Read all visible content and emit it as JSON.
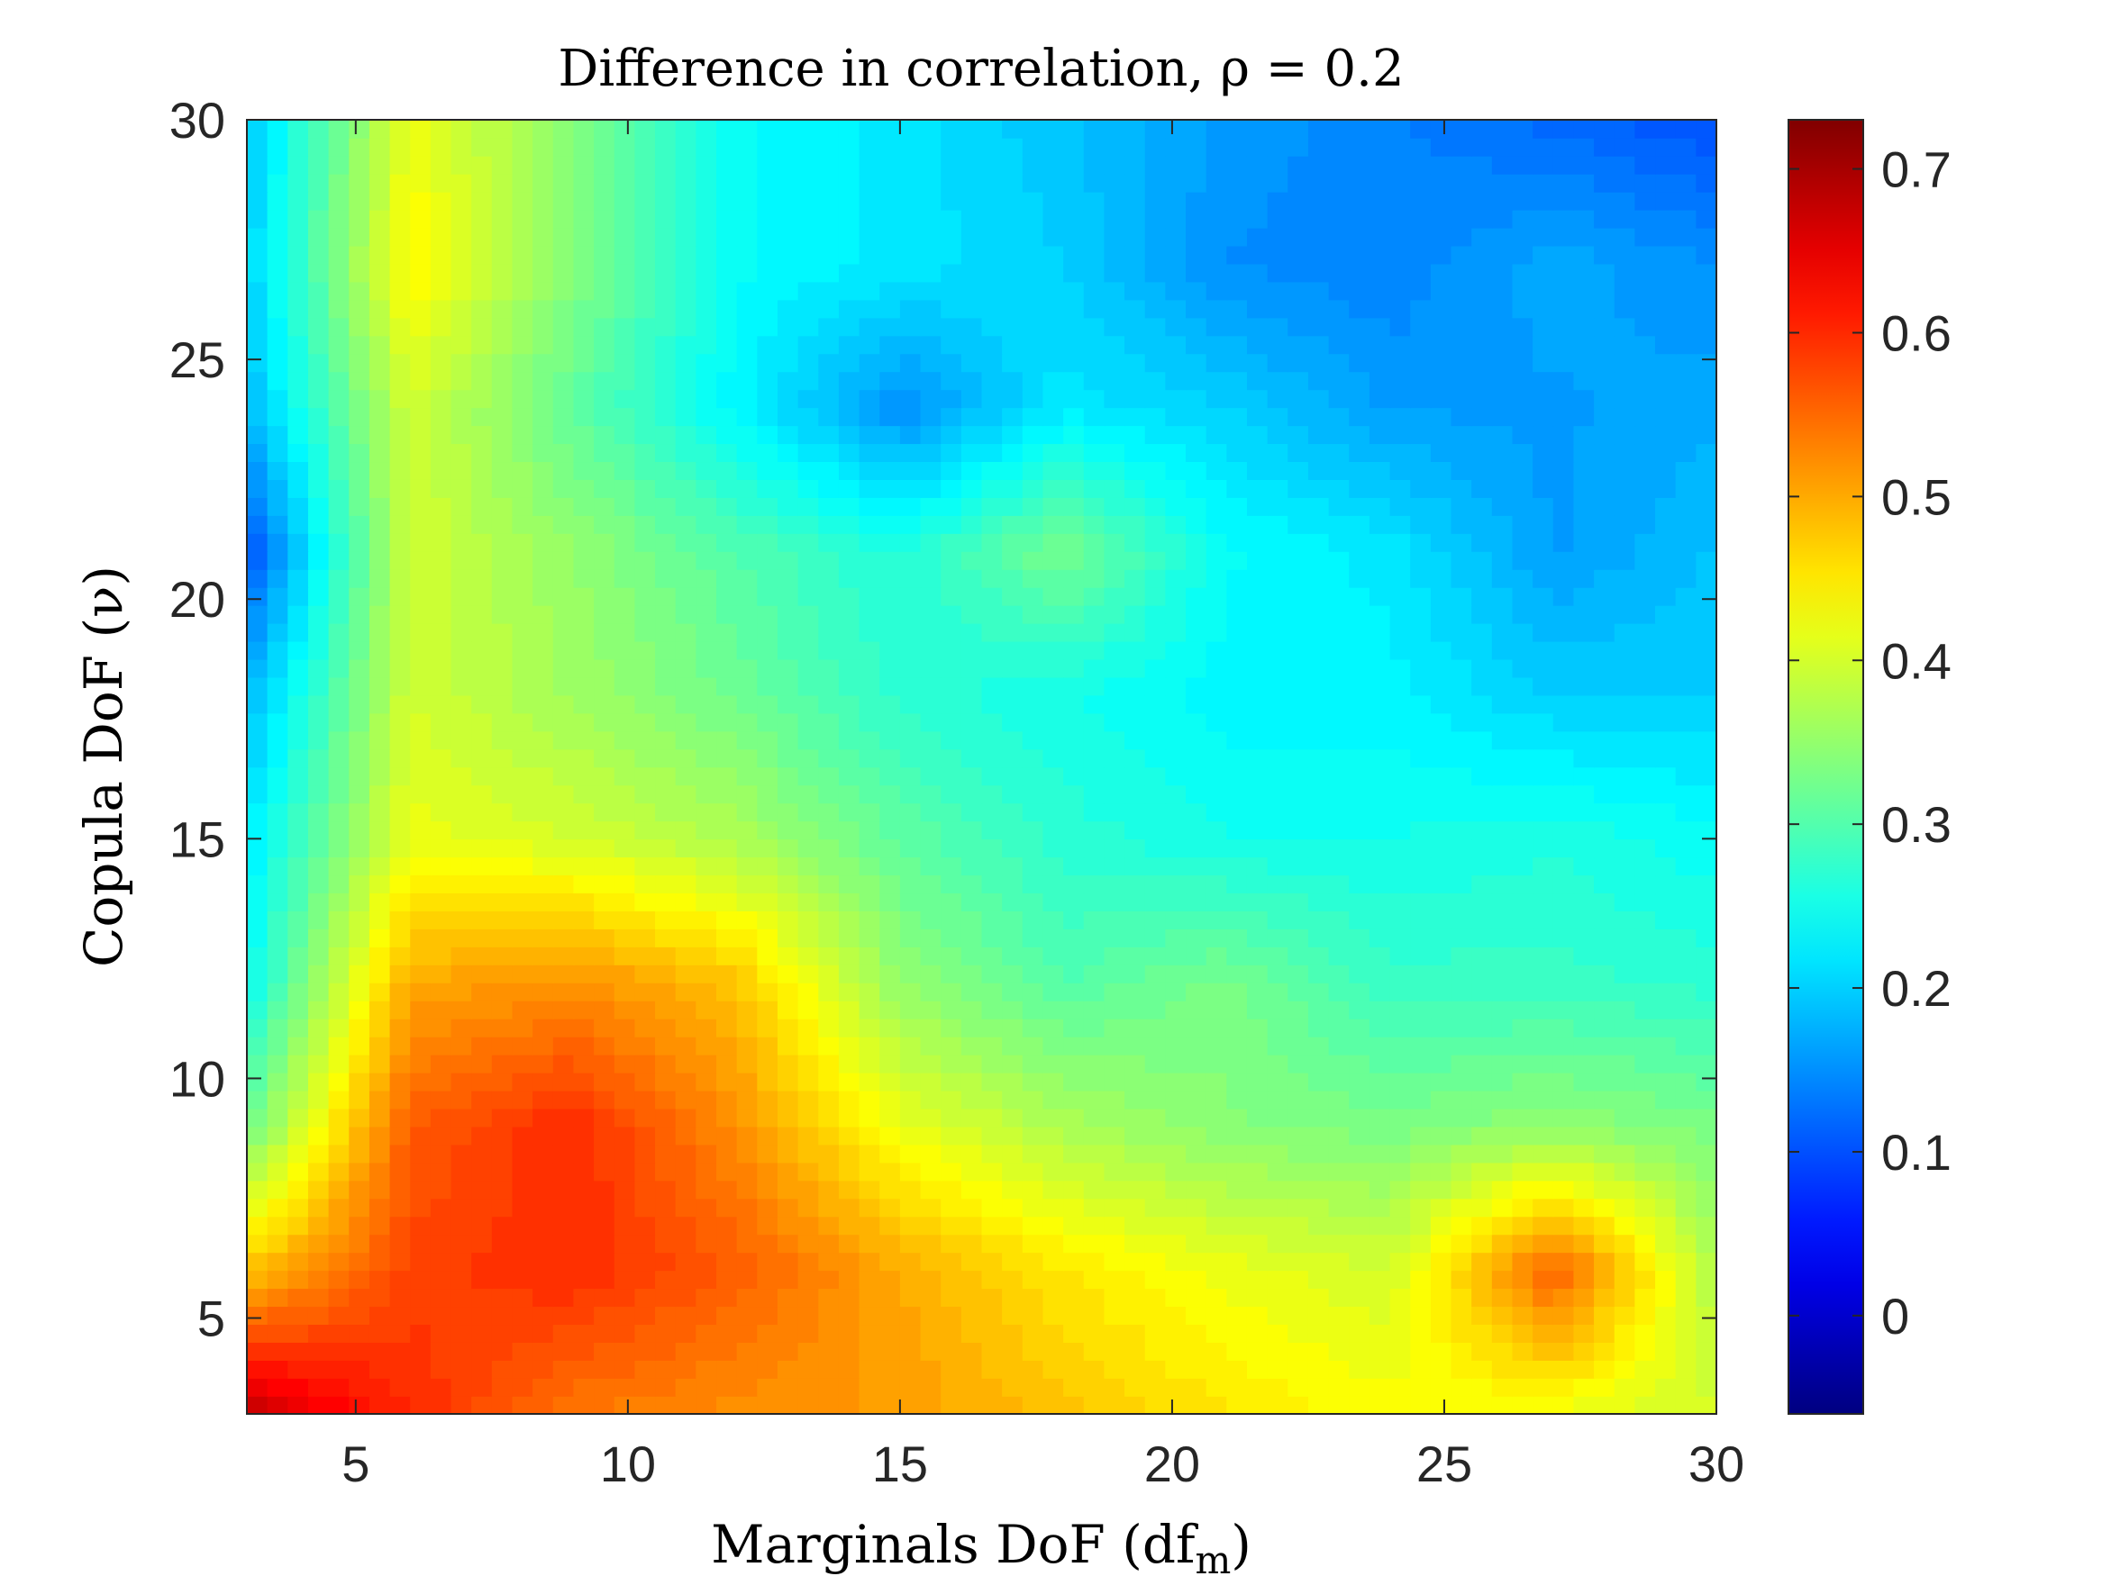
{
  "chart_data": {
    "type": "heatmap",
    "subtype": "filled-contour",
    "title": "Difference in correlation, ρ = 0.2",
    "xlabel": "Marginals DoF (df",
    "xlabel_sub": "m",
    "xlabel_close": ")",
    "ylabel": "Copula DoF (ν)",
    "xlim": [
      3,
      30
    ],
    "ylim": [
      3,
      30
    ],
    "x_ticks": [
      5,
      10,
      15,
      20,
      25,
      30
    ],
    "y_ticks": [
      5,
      10,
      15,
      20,
      25,
      30
    ],
    "colorbar": {
      "colormap": "jet",
      "range": [
        -0.06,
        0.73
      ],
      "ticks": [
        0,
        0.1,
        0.2,
        0.3,
        0.4,
        0.5,
        0.6,
        0.7
      ]
    },
    "x": [
      3,
      6,
      9,
      12,
      15,
      18,
      21,
      24,
      27,
      30
    ],
    "y": [
      3,
      6,
      9,
      12,
      15,
      18,
      21,
      24,
      27,
      30
    ],
    "z": [
      [
        0.68,
        0.6,
        0.54,
        0.52,
        0.51,
        0.48,
        0.45,
        0.43,
        0.42,
        0.4
      ],
      [
        0.48,
        0.58,
        0.6,
        0.56,
        0.5,
        0.45,
        0.42,
        0.4,
        0.56,
        0.37
      ],
      [
        0.32,
        0.56,
        0.6,
        0.52,
        0.42,
        0.37,
        0.34,
        0.33,
        0.35,
        0.33
      ],
      [
        0.24,
        0.5,
        0.52,
        0.48,
        0.35,
        0.3,
        0.33,
        0.28,
        0.28,
        0.27
      ],
      [
        0.22,
        0.42,
        0.4,
        0.37,
        0.31,
        0.27,
        0.25,
        0.25,
        0.26,
        0.24
      ],
      [
        0.18,
        0.4,
        0.36,
        0.32,
        0.27,
        0.25,
        0.23,
        0.23,
        0.2,
        0.2
      ],
      [
        0.1,
        0.4,
        0.35,
        0.3,
        0.26,
        0.33,
        0.24,
        0.22,
        0.16,
        0.19
      ],
      [
        0.18,
        0.4,
        0.31,
        0.23,
        0.15,
        0.22,
        0.2,
        0.16,
        0.16,
        0.17
      ],
      [
        0.2,
        0.44,
        0.34,
        0.24,
        0.22,
        0.2,
        0.15,
        0.14,
        0.17,
        0.15
      ],
      [
        0.19,
        0.42,
        0.34,
        0.24,
        0.22,
        0.19,
        0.16,
        0.14,
        0.12,
        0.1
      ]
    ]
  }
}
